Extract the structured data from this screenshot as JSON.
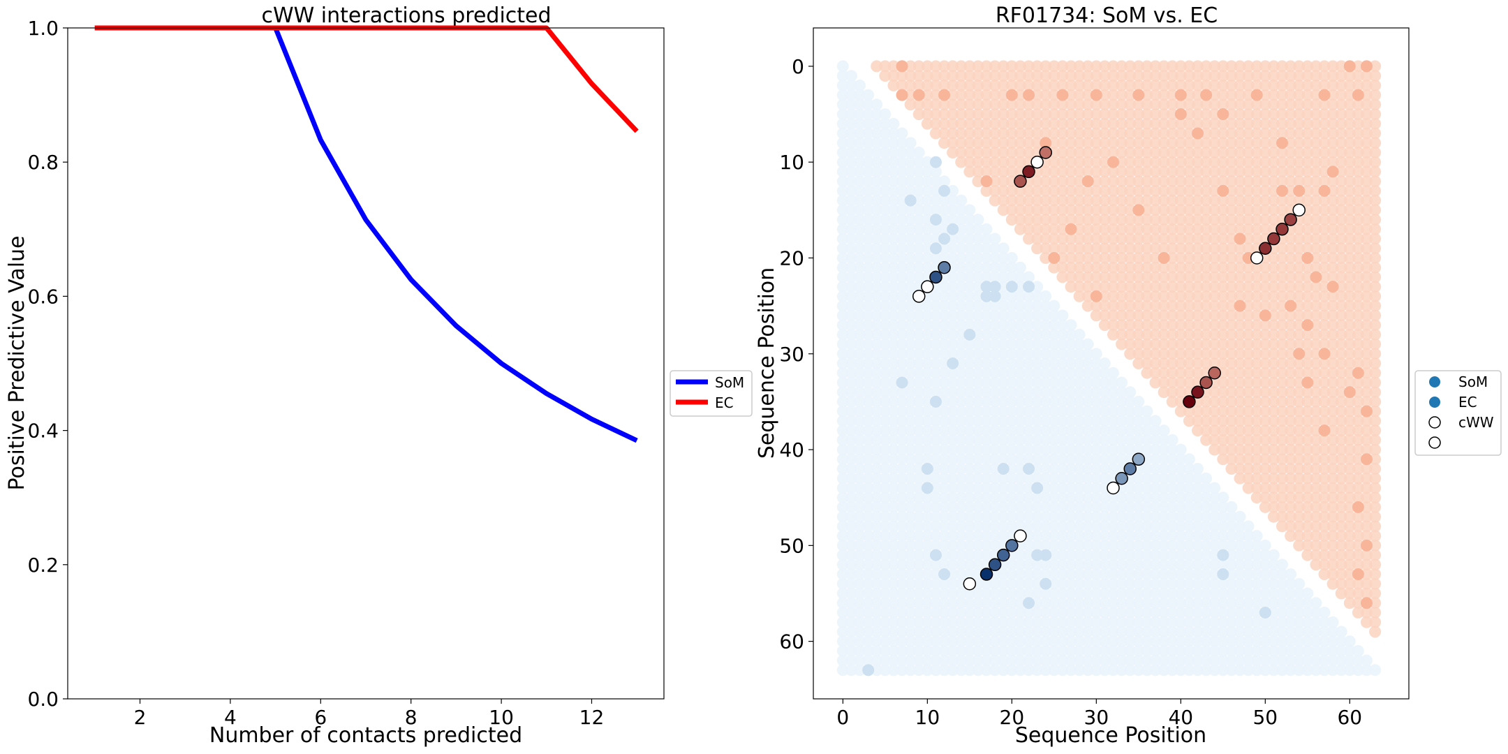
{
  "chart_data": [
    {
      "type": "line",
      "title": "cWW interactions predicted",
      "xlabel": "Number of contacts predicted",
      "ylabel": "Positive Predictive Value",
      "xlim": [
        0.4,
        13.6
      ],
      "ylim": [
        0,
        1.0
      ],
      "xticks": [
        2,
        4,
        6,
        8,
        10,
        12
      ],
      "yticks": [
        0.0,
        0.2,
        0.4,
        0.6,
        0.8,
        1.0
      ],
      "grid": false,
      "legend_position": "center-right outside",
      "series": [
        {
          "name": "SoM",
          "color": "#0000ff",
          "x": [
            1,
            2,
            3,
            4,
            5,
            6,
            7,
            8,
            9,
            10,
            11,
            12,
            13
          ],
          "y": [
            1.0,
            1.0,
            1.0,
            1.0,
            1.0,
            0.833,
            0.714,
            0.625,
            0.556,
            0.5,
            0.455,
            0.417,
            0.385
          ]
        },
        {
          "name": "EC",
          "color": "#ff0000",
          "x": [
            1,
            2,
            3,
            4,
            5,
            6,
            7,
            8,
            9,
            10,
            11,
            12,
            13
          ],
          "y": [
            1.0,
            1.0,
            1.0,
            1.0,
            1.0,
            1.0,
            1.0,
            1.0,
            1.0,
            1.0,
            1.0,
            0.917,
            0.846
          ]
        }
      ]
    },
    {
      "type": "scatter",
      "title": "RF01734: SoM vs. EC",
      "xlabel": "Sequence Position",
      "ylabel": "Sequence Position",
      "xlim": [
        -3.5,
        67
      ],
      "ylim": [
        66,
        -4
      ],
      "y_inverted": true,
      "xticks": [
        0,
        10,
        20,
        30,
        40,
        50,
        60
      ],
      "yticks": [
        0,
        10,
        20,
        30,
        40,
        50,
        60
      ],
      "grid": false,
      "legend_position": "center-right outside",
      "legend": [
        {
          "label": "SoM",
          "marker": "filled",
          "color": "#1f77b4"
        },
        {
          "label": "EC",
          "marker": "filled",
          "color": "#1f77b4"
        },
        {
          "label": "cWW",
          "marker": "open"
        },
        {
          "label": "",
          "marker": "open"
        }
      ],
      "matrix_size": 64,
      "background_colors": {
        "SoM": "#eaf3fb",
        "EC": "#fcd3c1"
      },
      "som_background_hotspots": [
        [
          11,
          10
        ],
        [
          12,
          13
        ],
        [
          11,
          16
        ],
        [
          13,
          17
        ],
        [
          12,
          18
        ],
        [
          11,
          19
        ],
        [
          17,
          23
        ],
        [
          18,
          23
        ],
        [
          20,
          23
        ],
        [
          22,
          23
        ],
        [
          17,
          24
        ],
        [
          18,
          24
        ],
        [
          19,
          42
        ],
        [
          22,
          42
        ],
        [
          23,
          44
        ],
        [
          10,
          42
        ],
        [
          10,
          44
        ],
        [
          11,
          51
        ],
        [
          12,
          53
        ],
        [
          23,
          51
        ],
        [
          24,
          51
        ],
        [
          45,
          51
        ],
        [
          45,
          53
        ],
        [
          50,
          57
        ],
        [
          24,
          54
        ],
        [
          22,
          56
        ],
        [
          3,
          63
        ],
        [
          8,
          14
        ],
        [
          13,
          31
        ],
        [
          7,
          33
        ],
        [
          11,
          35
        ],
        [
          15,
          28
        ]
      ],
      "ec_background_hotspots": [
        [
          7,
          0
        ],
        [
          60,
          0
        ],
        [
          62,
          0
        ],
        [
          7,
          3
        ],
        [
          9,
          3
        ],
        [
          12,
          3
        ],
        [
          20,
          3
        ],
        [
          22,
          3
        ],
        [
          26,
          3
        ],
        [
          30,
          3
        ],
        [
          35,
          3
        ],
        [
          40,
          3
        ],
        [
          43,
          3
        ],
        [
          49,
          3
        ],
        [
          57,
          3
        ],
        [
          61,
          3
        ],
        [
          24,
          8
        ],
        [
          52,
          8
        ],
        [
          58,
          11
        ],
        [
          45,
          13
        ],
        [
          52,
          13
        ],
        [
          54,
          13
        ],
        [
          57,
          13
        ],
        [
          17,
          12
        ],
        [
          29,
          12
        ],
        [
          47,
          18
        ],
        [
          55,
          20
        ],
        [
          58,
          23
        ],
        [
          56,
          22
        ],
        [
          47,
          25
        ],
        [
          53,
          25
        ],
        [
          55,
          27
        ],
        [
          61,
          32
        ],
        [
          55,
          33
        ],
        [
          60,
          34
        ],
        [
          62,
          36
        ],
        [
          57,
          38
        ],
        [
          62,
          41
        ],
        [
          61,
          46
        ],
        [
          62,
          50
        ],
        [
          61,
          53
        ],
        [
          62,
          56
        ],
        [
          48,
          20
        ],
        [
          50,
          26
        ],
        [
          54,
          30
        ],
        [
          57,
          30
        ],
        [
          40,
          5
        ],
        [
          42,
          7
        ],
        [
          35,
          15
        ],
        [
          38,
          20
        ],
        [
          30,
          24
        ],
        [
          25,
          20
        ],
        [
          27,
          17
        ],
        [
          32,
          10
        ],
        [
          45,
          5
        ]
      ],
      "som_points": [
        {
          "x": 12,
          "y": 21,
          "v": 0.55
        },
        {
          "x": 11,
          "y": 22,
          "v": 0.8
        },
        {
          "x": 35,
          "y": 41,
          "v": 0.3
        },
        {
          "x": 34,
          "y": 42,
          "v": 0.55
        },
        {
          "x": 33,
          "y": 43,
          "v": 0.4
        },
        {
          "x": 20,
          "y": 50,
          "v": 0.6
        },
        {
          "x": 19,
          "y": 51,
          "v": 0.7
        },
        {
          "x": 18,
          "y": 52,
          "v": 0.8
        },
        {
          "x": 17,
          "y": 53,
          "v": 1.0
        }
      ],
      "ec_points": [
        {
          "x": 24,
          "y": 9,
          "v": 0.4
        },
        {
          "x": 22,
          "y": 11,
          "v": 0.85
        },
        {
          "x": 21,
          "y": 12,
          "v": 0.55
        },
        {
          "x": 53,
          "y": 16,
          "v": 0.65
        },
        {
          "x": 52,
          "y": 17,
          "v": 0.7
        },
        {
          "x": 51,
          "y": 18,
          "v": 0.7
        },
        {
          "x": 50,
          "y": 19,
          "v": 0.75
        },
        {
          "x": 44,
          "y": 32,
          "v": 0.45
        },
        {
          "x": 43,
          "y": 33,
          "v": 0.55
        },
        {
          "x": 42,
          "y": 34,
          "v": 0.9
        },
        {
          "x": 41,
          "y": 35,
          "v": 1.0
        }
      ],
      "cww_points_upper": [
        {
          "x": 23,
          "y": 10
        },
        {
          "x": 54,
          "y": 15
        },
        {
          "x": 49,
          "y": 20
        }
      ],
      "cww_points_lower": [
        {
          "x": 10,
          "y": 23
        },
        {
          "x": 9,
          "y": 24
        },
        {
          "x": 32,
          "y": 44
        },
        {
          "x": 21,
          "y": 49
        },
        {
          "x": 15,
          "y": 54
        }
      ]
    }
  ]
}
